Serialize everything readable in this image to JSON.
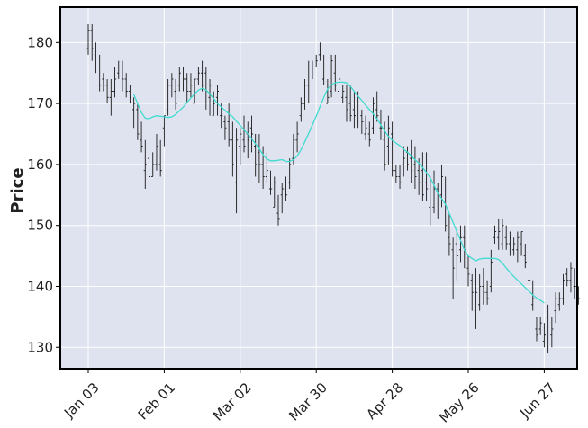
{
  "chart_data": {
    "type": "ohlc",
    "title": "",
    "xlabel": "",
    "ylabel": "Price",
    "ylim": [
      126.5,
      185.8
    ],
    "yticks": [
      130,
      140,
      150,
      160,
      170,
      180
    ],
    "grid": true,
    "legend": "none",
    "colors": {
      "background": "#dfe3ef",
      "grid": "#ffffff",
      "bars": "#1a1a1a",
      "moving_average": "#40dbd0",
      "frame": "#000000"
    },
    "x_tick_labels": [
      "Jan 03",
      "Feb 01",
      "Mar 02",
      "Mar 30",
      "Apr 28",
      "May 26",
      "Jun 27"
    ],
    "x_tick_index": [
      0,
      20,
      40,
      60,
      80,
      100,
      120
    ],
    "bars": [
      [
        179,
        183,
        178,
        182
      ],
      [
        182,
        183,
        177,
        179
      ],
      [
        178,
        180,
        175,
        176
      ],
      [
        176,
        178,
        172,
        173
      ],
      [
        174,
        175,
        172,
        173
      ],
      [
        173,
        174,
        170,
        171
      ],
      [
        171,
        174,
        168,
        172
      ],
      [
        172,
        176,
        171,
        174
      ],
      [
        175,
        177,
        174,
        176
      ],
      [
        176,
        177,
        172,
        174
      ],
      [
        174,
        175,
        171,
        172
      ],
      [
        172,
        173,
        170,
        171
      ],
      [
        169,
        171,
        166,
        170
      ],
      [
        169,
        170,
        164,
        165
      ],
      [
        164,
        167,
        162,
        163
      ],
      [
        159,
        164,
        156,
        160
      ],
      [
        161,
        164,
        155,
        158
      ],
      [
        158,
        162,
        158,
        160
      ],
      [
        160,
        165,
        159,
        163
      ],
      [
        160,
        164,
        158,
        159
      ],
      [
        166,
        168,
        163,
        168
      ],
      [
        169,
        174,
        168,
        173
      ],
      [
        173,
        175,
        171,
        174
      ],
      [
        172,
        174,
        169,
        170
      ],
      [
        173,
        176,
        172,
        175
      ],
      [
        176,
        176,
        172,
        174
      ],
      [
        174,
        175,
        170,
        172
      ],
      [
        172,
        175,
        171,
        173
      ],
      [
        170,
        174,
        170,
        174
      ],
      [
        174,
        176,
        173,
        175
      ],
      [
        175,
        177,
        172,
        173
      ],
      [
        175,
        176,
        169,
        172
      ],
      [
        171,
        174,
        168,
        173
      ],
      [
        168,
        172,
        168,
        170
      ],
      [
        171,
        173,
        168,
        172
      ],
      [
        168,
        170,
        166,
        168
      ],
      [
        167,
        168,
        164,
        166
      ],
      [
        167,
        170,
        163,
        164
      ],
      [
        164,
        167,
        158,
        160
      ],
      [
        157,
        166,
        152,
        164
      ],
      [
        163,
        166,
        160,
        165
      ],
      [
        164,
        168,
        162,
        163
      ],
      [
        165,
        167,
        161,
        164
      ],
      [
        166,
        168,
        162,
        165
      ],
      [
        163,
        165,
        158,
        160
      ],
      [
        162,
        165,
        157,
        160
      ],
      [
        160,
        163,
        156,
        158
      ],
      [
        158,
        162,
        157,
        159
      ],
      [
        156,
        159,
        155,
        156
      ],
      [
        153,
        158,
        153,
        157
      ],
      [
        152,
        155,
        150,
        151
      ],
      [
        155,
        157,
        152,
        156
      ],
      [
        156,
        158,
        154,
        155
      ],
      [
        157,
        161,
        156,
        160
      ],
      [
        161,
        165,
        160,
        164
      ],
      [
        164,
        167,
        162,
        165
      ],
      [
        168,
        171,
        167,
        170
      ],
      [
        170,
        174,
        169,
        173
      ],
      [
        173,
        177,
        170,
        176
      ],
      [
        176,
        177,
        174,
        176
      ],
      [
        176,
        178,
        176,
        177
      ],
      [
        178,
        180,
        177,
        178
      ],
      [
        174,
        178,
        173,
        176
      ],
      [
        170,
        174,
        170,
        171
      ],
      [
        172,
        178,
        171,
        177
      ],
      [
        175,
        178,
        172,
        173
      ],
      [
        172,
        176,
        171,
        174
      ],
      [
        171,
        173,
        170,
        172
      ],
      [
        171,
        173,
        167,
        169
      ],
      [
        170,
        173,
        167,
        168
      ],
      [
        169,
        172,
        166,
        168
      ],
      [
        167,
        172,
        166,
        171
      ],
      [
        168,
        169,
        165,
        167
      ],
      [
        165,
        168,
        164,
        166
      ],
      [
        165,
        167,
        163,
        164
      ],
      [
        166,
        171,
        165,
        170
      ],
      [
        169,
        172,
        167,
        168
      ],
      [
        166,
        169,
        164,
        166
      ],
      [
        164,
        167,
        159,
        160
      ],
      [
        163,
        168,
        160,
        166
      ],
      [
        165,
        167,
        158,
        159
      ],
      [
        159,
        160,
        157,
        158
      ],
      [
        158,
        160,
        156,
        157
      ],
      [
        160,
        163,
        158,
        161
      ],
      [
        162,
        163,
        159,
        160
      ],
      [
        161,
        164,
        157,
        159
      ],
      [
        160,
        163,
        156,
        158
      ],
      [
        159,
        161,
        155,
        157
      ],
      [
        159,
        162,
        154,
        155
      ],
      [
        157,
        162,
        154,
        156
      ],
      [
        153,
        158,
        150,
        154
      ],
      [
        153,
        159,
        152,
        156
      ],
      [
        156,
        157,
        151,
        154
      ],
      [
        155,
        160,
        153,
        158
      ],
      [
        154,
        158,
        149,
        150
      ],
      [
        148,
        152,
        145,
        147
      ],
      [
        146,
        148,
        138,
        143
      ],
      [
        147,
        149,
        141,
        145
      ],
      [
        146,
        150,
        144,
        148
      ],
      [
        148,
        150,
        143,
        146
      ],
      [
        143,
        145,
        140,
        142
      ],
      [
        141,
        142,
        136,
        139
      ],
      [
        136,
        143,
        133,
        139
      ],
      [
        137,
        142,
        136,
        140
      ],
      [
        140,
        143,
        137,
        139
      ],
      [
        139,
        141,
        137,
        138
      ],
      [
        140,
        146,
        139,
        144
      ],
      [
        148,
        150,
        147,
        149
      ],
      [
        148,
        151,
        146,
        149
      ],
      [
        147,
        151,
        146,
        150
      ],
      [
        148,
        150,
        146,
        147
      ],
      [
        147,
        149,
        145,
        148
      ],
      [
        146,
        148,
        145,
        147
      ],
      [
        146,
        149,
        144,
        148
      ],
      [
        147,
        149,
        145,
        149
      ],
      [
        145,
        147,
        143,
        144
      ],
      [
        141,
        143,
        140,
        141
      ],
      [
        137,
        141,
        136,
        138
      ],
      [
        133,
        135,
        131,
        132
      ],
      [
        133,
        135,
        132,
        134
      ],
      [
        131,
        134,
        130,
        132
      ],
      [
        130,
        137,
        129,
        135
      ],
      [
        132,
        135,
        130,
        133
      ],
      [
        136,
        139,
        134,
        138
      ],
      [
        137,
        139,
        136,
        138
      ],
      [
        138,
        142,
        137,
        141
      ],
      [
        142,
        143,
        140,
        141
      ],
      [
        141,
        144,
        139,
        143
      ],
      [
        140,
        143,
        138,
        140
      ],
      [
        139,
        140,
        137,
        138
      ]
    ],
    "moving_average": [
      [
        12,
        171.5
      ],
      [
        13,
        170
      ],
      [
        14,
        168.5
      ],
      [
        15,
        167.6
      ],
      [
        16,
        167.5
      ],
      [
        17,
        167.8
      ],
      [
        18,
        168
      ],
      [
        19,
        167.9
      ],
      [
        20,
        167.8
      ],
      [
        21,
        167.7
      ],
      [
        22,
        167.8
      ],
      [
        23,
        168.2
      ],
      [
        24,
        168.8
      ],
      [
        25,
        169.4
      ],
      [
        26,
        170.2
      ],
      [
        27,
        170.9
      ],
      [
        28,
        171.6
      ],
      [
        29,
        172.2
      ],
      [
        30,
        172.5
      ],
      [
        31,
        172.2
      ],
      [
        32,
        171.6
      ],
      [
        33,
        170.8
      ],
      [
        34,
        170
      ],
      [
        35,
        169.4
      ],
      [
        36,
        168.9
      ],
      [
        37,
        168.3
      ],
      [
        38,
        167.8
      ],
      [
        39,
        167.1
      ],
      [
        40,
        166.4
      ],
      [
        41,
        165.7
      ],
      [
        42,
        165
      ],
      [
        43,
        164.2
      ],
      [
        44,
        163.4
      ],
      [
        45,
        162.6
      ],
      [
        46,
        161.6
      ],
      [
        47,
        160.9
      ],
      [
        48,
        160.6
      ],
      [
        49,
        160.6
      ],
      [
        50,
        160.7
      ],
      [
        51,
        160.8
      ],
      [
        52,
        160.5
      ],
      [
        53,
        160.5
      ],
      [
        54,
        160.8
      ],
      [
        55,
        161.4
      ],
      [
        56,
        162.4
      ],
      [
        57,
        163.7
      ],
      [
        58,
        165.1
      ],
      [
        59,
        166.5
      ],
      [
        60,
        167.9
      ],
      [
        61,
        169.5
      ],
      [
        62,
        171
      ],
      [
        63,
        172.4
      ],
      [
        64,
        173.1
      ],
      [
        65,
        173.4
      ],
      [
        66,
        173.5
      ],
      [
        67,
        173.5
      ],
      [
        68,
        173.4
      ],
      [
        69,
        172.8
      ],
      [
        70,
        172
      ],
      [
        71,
        171.2
      ],
      [
        72,
        170.5
      ],
      [
        73,
        169.7
      ],
      [
        74,
        169
      ],
      [
        75,
        168.3
      ],
      [
        76,
        167.5
      ],
      [
        77,
        166.5
      ],
      [
        78,
        165.5
      ],
      [
        79,
        164.6
      ],
      [
        80,
        164
      ],
      [
        81,
        163.5
      ],
      [
        82,
        163.1
      ],
      [
        83,
        162.5
      ],
      [
        84,
        162
      ],
      [
        85,
        161.4
      ],
      [
        86,
        160.8
      ],
      [
        87,
        160.2
      ],
      [
        88,
        159.5
      ],
      [
        89,
        158.7
      ],
      [
        90,
        157.8
      ],
      [
        91,
        156.6
      ],
      [
        92,
        155.3
      ],
      [
        93,
        154.4
      ],
      [
        94,
        153.5
      ],
      [
        95,
        152
      ],
      [
        96,
        150.5
      ],
      [
        97,
        149
      ],
      [
        98,
        147.5
      ],
      [
        99,
        146
      ],
      [
        100,
        145
      ],
      [
        101,
        144.6
      ],
      [
        102,
        144.2
      ],
      [
        103,
        144.5
      ],
      [
        104,
        144.6
      ],
      [
        105,
        144.6
      ],
      [
        106,
        144.6
      ],
      [
        107,
        144.6
      ],
      [
        108,
        144.4
      ],
      [
        109,
        143.8
      ],
      [
        110,
        143
      ],
      [
        111,
        142.3
      ],
      [
        112,
        141.6
      ],
      [
        113,
        141
      ],
      [
        114,
        140.4
      ],
      [
        115,
        139.8
      ],
      [
        116,
        139.2
      ],
      [
        117,
        138.6
      ],
      [
        118,
        138.1
      ],
      [
        119,
        137.7
      ],
      [
        120,
        137.3
      ]
    ]
  }
}
